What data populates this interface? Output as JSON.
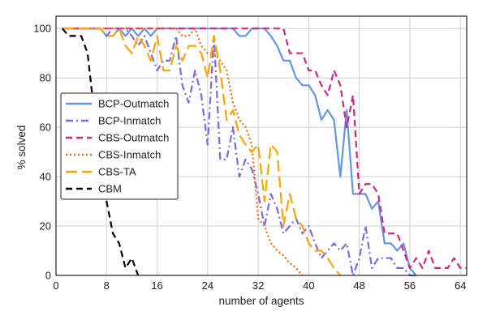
{
  "chart_data": {
    "type": "line",
    "xlabel": "number of agents",
    "ylabel": "% solved",
    "xlim": [
      0,
      65
    ],
    "ylim": [
      0,
      105
    ],
    "xticks": [
      0,
      8,
      16,
      24,
      32,
      40,
      48,
      56,
      64
    ],
    "yticks": [
      0,
      20,
      40,
      60,
      80,
      100
    ],
    "grid": true,
    "legend": "center-left",
    "series": [
      {
        "name": "BCP-Outmatch",
        "color": "#6495ed",
        "dash": "solid",
        "x": [
          1,
          2,
          3,
          4,
          5,
          6,
          7,
          8,
          9,
          10,
          11,
          12,
          13,
          14,
          15,
          16,
          17,
          18,
          19,
          20,
          21,
          22,
          23,
          24,
          25,
          26,
          27,
          28,
          29,
          30,
          31,
          32,
          33,
          34,
          35,
          36,
          37,
          38,
          39,
          40,
          41,
          42,
          43,
          44,
          45,
          46,
          47,
          48,
          49,
          50,
          51,
          52,
          53,
          54,
          55,
          56,
          57
        ],
        "y": [
          100,
          100,
          100,
          100,
          100,
          100,
          100,
          97,
          97,
          100,
          97,
          100,
          97,
          100,
          97,
          100,
          100,
          100,
          100,
          100,
          100,
          100,
          100,
          100,
          100,
          100,
          100,
          100,
          97,
          97,
          100,
          100,
          100,
          97,
          93,
          87,
          87,
          80,
          77,
          77,
          73,
          63,
          67,
          63,
          40,
          67,
          33,
          33,
          33,
          27,
          30,
          13,
          13,
          10,
          13,
          3,
          0
        ]
      },
      {
        "name": "BCP-Inmatch",
        "color": "#7b68ee",
        "dash": "dashdot",
        "x": [
          1,
          2,
          3,
          4,
          5,
          6,
          7,
          8,
          9,
          10,
          11,
          12,
          13,
          14,
          15,
          16,
          17,
          18,
          19,
          20,
          21,
          22,
          23,
          24,
          25,
          26,
          27,
          28,
          29,
          30,
          31,
          32,
          33,
          34,
          35,
          36,
          37,
          38,
          39,
          40,
          41,
          42,
          43,
          44,
          45,
          46,
          47,
          48,
          49,
          50,
          51,
          52,
          53,
          54,
          55,
          56,
          57
        ],
        "y": [
          100,
          100,
          100,
          100,
          100,
          100,
          100,
          97,
          100,
          100,
          100,
          97,
          93,
          97,
          90,
          83,
          87,
          87,
          97,
          77,
          70,
          83,
          73,
          53,
          97,
          47,
          47,
          60,
          40,
          47,
          43,
          33,
          20,
          33,
          27,
          17,
          20,
          23,
          17,
          20,
          13,
          7,
          10,
          13,
          10,
          13,
          0,
          7,
          20,
          3,
          7,
          7,
          7,
          3,
          3,
          0,
          0
        ]
      },
      {
        "name": "CBS-Outmatch",
        "color": "#d6247f",
        "dash": "dashed",
        "x": [
          1,
          2,
          3,
          4,
          5,
          6,
          7,
          8,
          9,
          10,
          11,
          12,
          13,
          14,
          15,
          16,
          17,
          18,
          19,
          20,
          21,
          22,
          23,
          24,
          25,
          26,
          27,
          28,
          29,
          30,
          31,
          32,
          33,
          34,
          35,
          36,
          37,
          38,
          39,
          40,
          41,
          42,
          43,
          44,
          45,
          46,
          47,
          48,
          49,
          50,
          51,
          52,
          53,
          54,
          55,
          56,
          57,
          58,
          59,
          60,
          61,
          62,
          63,
          64,
          65
        ],
        "y": [
          100,
          100,
          100,
          100,
          100,
          100,
          100,
          100,
          100,
          100,
          100,
          100,
          100,
          100,
          100,
          100,
          100,
          100,
          100,
          100,
          100,
          100,
          100,
          100,
          100,
          100,
          100,
          100,
          100,
          100,
          100,
          100,
          100,
          100,
          100,
          100,
          90,
          90,
          90,
          83,
          83,
          77,
          73,
          83,
          77,
          60,
          73,
          33,
          37,
          37,
          33,
          17,
          17,
          17,
          10,
          3,
          7,
          3,
          10,
          3,
          3,
          3,
          7,
          3,
          3
        ]
      },
      {
        "name": "CBS-Inmatch",
        "color": "#ff6a00",
        "dash": "dotted",
        "x": [
          1,
          2,
          3,
          4,
          5,
          6,
          7,
          8,
          9,
          10,
          11,
          12,
          13,
          14,
          15,
          16,
          17,
          18,
          19,
          20,
          21,
          22,
          23,
          24,
          25,
          26,
          27,
          28,
          29,
          30,
          31,
          32,
          33,
          34,
          35,
          36,
          37,
          38,
          39
        ],
        "y": [
          100,
          100,
          100,
          100,
          100,
          100,
          100,
          100,
          100,
          100,
          100,
          100,
          100,
          100,
          100,
          100,
          100,
          100,
          100,
          97,
          97,
          100,
          93,
          90,
          90,
          87,
          83,
          70,
          63,
          60,
          53,
          23,
          20,
          13,
          10,
          8,
          5,
          3,
          0
        ]
      },
      {
        "name": "CBS-TA",
        "color": "#ffa500",
        "dash": "longdash",
        "x": [
          1,
          2,
          3,
          4,
          5,
          6,
          7,
          8,
          9,
          10,
          11,
          12,
          13,
          14,
          15,
          16,
          17,
          18,
          19,
          20,
          21,
          22,
          23,
          24,
          25,
          26,
          27,
          28,
          29,
          30,
          31,
          32,
          33,
          34,
          35,
          36,
          37,
          38,
          39,
          40,
          41,
          42,
          43,
          44,
          45
        ],
        "y": [
          100,
          100,
          100,
          100,
          100,
          100,
          100,
          97,
          97,
          100,
          93,
          90,
          97,
          93,
          87,
          97,
          83,
          83,
          93,
          87,
          93,
          93,
          90,
          80,
          97,
          83,
          63,
          67,
          57,
          53,
          50,
          53,
          30,
          53,
          50,
          20,
          33,
          23,
          20,
          13,
          10,
          10,
          7,
          3,
          0
        ]
      },
      {
        "name": "CBM",
        "color": "#000000",
        "dash": "dashed",
        "x": [
          1,
          2,
          3,
          4,
          5,
          6,
          7,
          8,
          9,
          10,
          11,
          12,
          13
        ],
        "y": [
          100,
          97,
          97,
          97,
          90,
          67,
          43,
          30,
          17,
          13,
          3,
          7,
          0
        ]
      }
    ]
  }
}
